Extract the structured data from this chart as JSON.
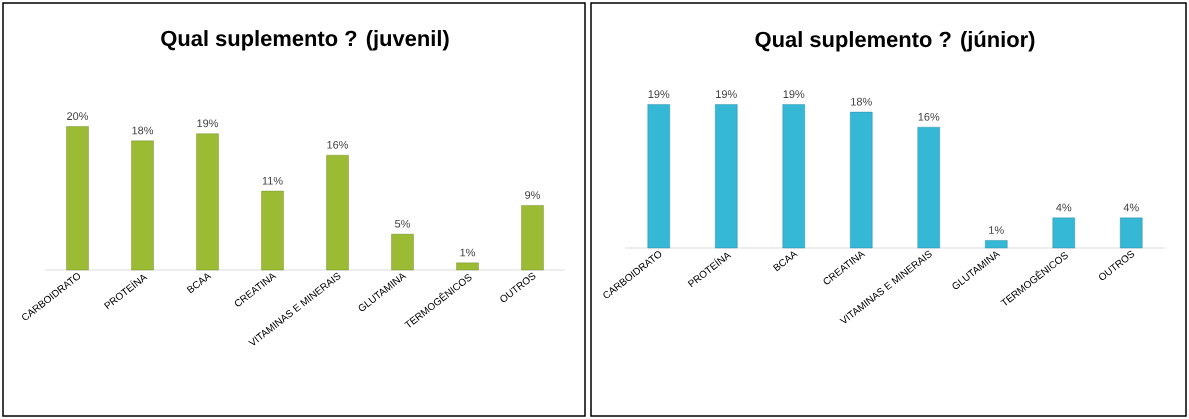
{
  "chart_data": [
    {
      "type": "bar",
      "title": "Qual suplemento ? (juvenil)",
      "categories": [
        "CARBOIDRATO",
        "PROTEÍNA",
        "BCAA",
        "CREATINA",
        "VITAMINAS E MINERAIS",
        "GLUTAMINA",
        "TERMOGÊNICOS",
        "OUTROS"
      ],
      "values": [
        20,
        18,
        19,
        11,
        16,
        5,
        1,
        9
      ],
      "value_labels": [
        "20%",
        "18%",
        "19%",
        "11%",
        "16%",
        "5%",
        "1%",
        "9%"
      ],
      "color": "#9bbb34"
    },
    {
      "type": "bar",
      "title": "Qual suplemento ? (júnior)",
      "categories": [
        "CARBOIDRATO",
        "PROTEÍNA",
        "BCAA",
        "CREATINA",
        "VITAMINAS E MINERAIS",
        "GLUTAMINA",
        "TERMOGÊNICOS",
        "OUTROS"
      ],
      "values": [
        19,
        19,
        19,
        18,
        16,
        1,
        4,
        4
      ],
      "value_labels": [
        "19%",
        "19%",
        "19%",
        "18%",
        "16%",
        "1%",
        "4%",
        "4%"
      ],
      "color": "#35b7d6"
    }
  ]
}
